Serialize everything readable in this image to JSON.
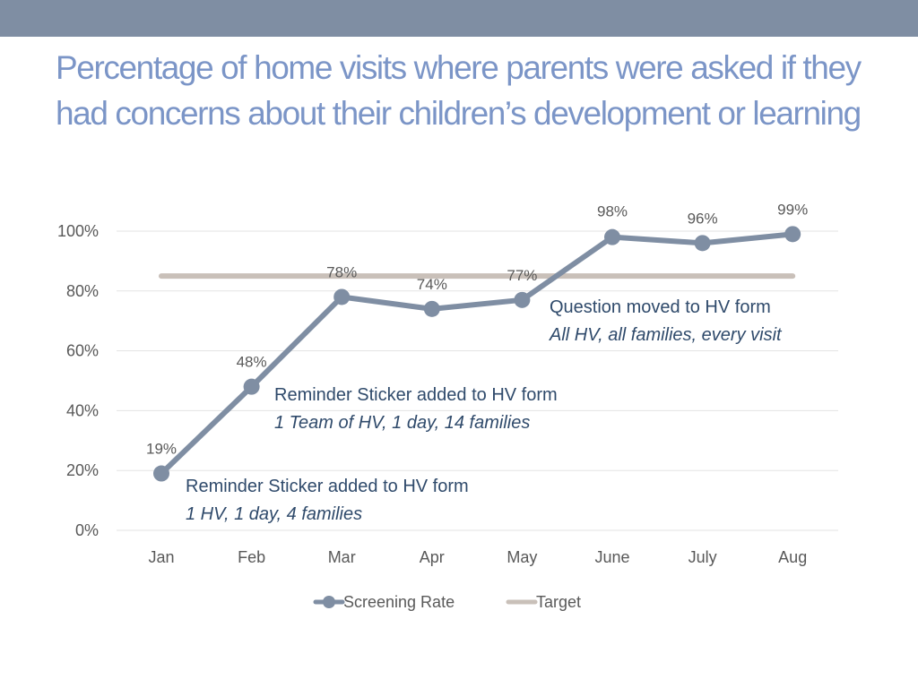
{
  "slide": {
    "title": "Percentage of home visits where parents were asked if they had concerns about their children’s development or learning"
  },
  "chart_data": {
    "type": "line",
    "categories": [
      "Jan",
      "Feb",
      "Mar",
      "Apr",
      "May",
      "June",
      "July",
      "Aug"
    ],
    "series": [
      {
        "name": "Screening Rate",
        "values": [
          19,
          48,
          78,
          74,
          77,
          98,
          96,
          99
        ],
        "labels": [
          "19%",
          "48%",
          "78%",
          "74%",
          "77%",
          "98%",
          "96%",
          "99%"
        ],
        "color": "#7f8ea3"
      },
      {
        "name": "Target",
        "values": [
          85,
          85,
          85,
          85,
          85,
          85,
          85,
          85
        ],
        "color": "#c9c0b9"
      }
    ],
    "ylim": [
      0,
      100
    ],
    "yticks": [
      0,
      20,
      40,
      60,
      80,
      100
    ],
    "ytick_labels": [
      "0%",
      "20%",
      "40%",
      "60%",
      "80%",
      "100%"
    ],
    "grid": true,
    "legend_position": "bottom",
    "annotations": [
      {
        "line1": "Reminder Sticker added to HV form",
        "line2": "1 HV, 1 day, 4 families"
      },
      {
        "line1": "Reminder Sticker added to HV form",
        "line2": "1 Team of HV, 1 day, 14 families"
      },
      {
        "line1": "Question moved to HV form",
        "line2": "All HV, all families, every visit"
      }
    ]
  }
}
